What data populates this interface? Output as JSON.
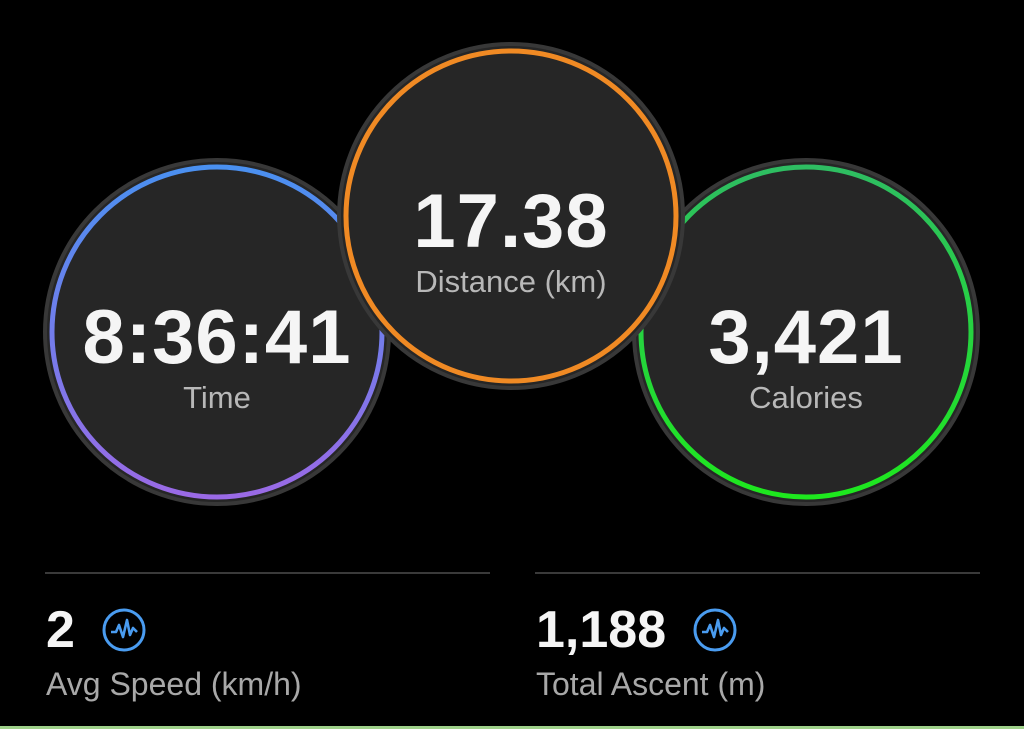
{
  "rings": [
    {
      "id": "time",
      "value": "8:36:41",
      "label": "Time",
      "color_top": "#4a90f0",
      "color_bottom": "#9a6ae6"
    },
    {
      "id": "distance",
      "value": "17.38",
      "label": "Distance (km)",
      "color_top": "#f08a24",
      "color_bottom": "#f08a24"
    },
    {
      "id": "calories",
      "value": "3,421",
      "label": "Calories",
      "color_top": "#2ebd62",
      "color_bottom": "#1ee81e"
    }
  ],
  "stats": [
    {
      "value": "2",
      "label": "Avg Speed (km/h)",
      "icon": "activity-pulse-icon"
    },
    {
      "value": "1,188",
      "label": "Total Ascent (m)",
      "icon": "activity-pulse-icon"
    }
  ],
  "colors": {
    "icon": "#4a9cf0",
    "ring_bg": "#262626",
    "ring_border": "#3a3a3a"
  }
}
